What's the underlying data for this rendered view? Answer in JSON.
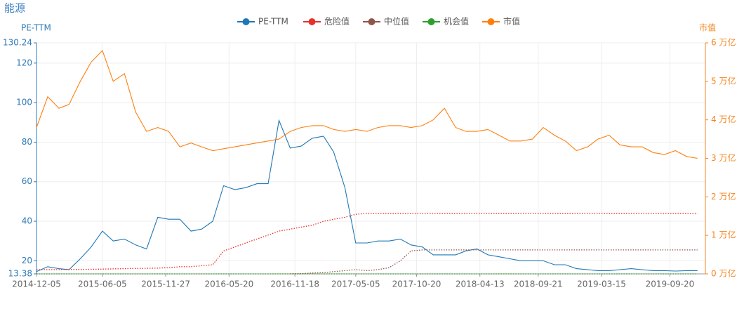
{
  "chart_data": {
    "type": "line",
    "title": "能源",
    "y_label": "PE-TTM",
    "y2_label": "市值",
    "grid": true,
    "legend": "top",
    "x": [
      "2014-12-05",
      "2015-01-05",
      "2015-02-05",
      "2015-03-05",
      "2015-04-05",
      "2015-05-05",
      "2015-06-05",
      "2015-07-05",
      "2015-08-05",
      "2015-09-05",
      "2015-10-05",
      "2015-11-05",
      "2015-12-05",
      "2016-01-05",
      "2016-02-05",
      "2016-03-05",
      "2016-04-05",
      "2016-05-05",
      "2016-06-05",
      "2016-07-05",
      "2016-08-05",
      "2016-09-05",
      "2016-10-05",
      "2016-11-05",
      "2016-12-05",
      "2017-01-05",
      "2017-02-05",
      "2017-03-05",
      "2017-04-05",
      "2017-05-05",
      "2017-06-05",
      "2017-07-05",
      "2017-08-05",
      "2017-09-05",
      "2017-10-05",
      "2017-11-05",
      "2017-12-05",
      "2018-01-05",
      "2018-02-05",
      "2018-03-05",
      "2018-04-05",
      "2018-05-05",
      "2018-06-05",
      "2018-07-05",
      "2018-08-05",
      "2018-09-05",
      "2018-10-05",
      "2018-11-05",
      "2018-12-05",
      "2019-01-05",
      "2019-02-05",
      "2019-03-05",
      "2019-04-05",
      "2019-05-05",
      "2019-06-05",
      "2019-07-05",
      "2019-08-05",
      "2019-09-05",
      "2019-10-05",
      "2019-11-05",
      "2019-12-05"
    ],
    "xlim": [
      "2014-12-05",
      "2019-12-27"
    ],
    "xticks": [
      "2014-12-05",
      "2015-06-05",
      "2015-11-27",
      "2016-05-20",
      "2016-11-18",
      "2017-05-05",
      "2017-10-20",
      "2018-04-13",
      "2018-09-21",
      "2019-03-15",
      "2019-09-20"
    ],
    "ylim": [
      13.38,
      130.24
    ],
    "yticks": [
      13.38,
      20,
      40,
      60,
      80,
      100,
      120,
      130.24
    ],
    "y2lim": [
      0,
      6
    ],
    "y2ticks": [
      {
        "value": 0,
        "label": "0 万亿"
      },
      {
        "value": 1,
        "label": "1 万亿"
      },
      {
        "value": 2,
        "label": "2 万亿"
      },
      {
        "value": 3,
        "label": "3 万亿"
      },
      {
        "value": 4,
        "label": "4 万亿"
      },
      {
        "value": 5,
        "label": "5 万亿"
      },
      {
        "value": 6,
        "label": "6 万亿"
      }
    ],
    "series": [
      {
        "name": "PE-TTM",
        "color": "#1f77b4",
        "line_style": "solid",
        "values": [
          14.5,
          17,
          16,
          15.5,
          21,
          27,
          35,
          30,
          31,
          28,
          26,
          42,
          41,
          41,
          35,
          36,
          40,
          58,
          56,
          57,
          59,
          59,
          91,
          77,
          78,
          82,
          83,
          75,
          57,
          29,
          29,
          30,
          30,
          31,
          28,
          27,
          23,
          23,
          23,
          25,
          26,
          23,
          22,
          21,
          20,
          20,
          20,
          18,
          18,
          16,
          15.5,
          15,
          15,
          15.5,
          16,
          15.5,
          15,
          15,
          14.8,
          15,
          15
        ]
      },
      {
        "name": "危险值",
        "color": "#e8302b",
        "line_style": "dotted",
        "values": [
          15.5,
          15.5,
          15.5,
          15.6,
          15.6,
          15.7,
          15.8,
          15.9,
          16,
          16.1,
          16.2,
          16.3,
          16.5,
          17,
          17,
          17.5,
          18,
          25,
          27,
          29,
          31,
          33,
          35,
          36,
          37,
          38,
          40,
          41,
          42,
          43.5,
          44,
          44,
          44,
          44,
          44,
          44,
          44,
          44,
          44,
          44,
          44,
          44,
          44,
          44,
          44,
          44,
          44,
          44,
          44,
          44,
          44,
          44,
          44,
          44,
          44,
          44,
          44,
          44,
          44,
          44,
          44
        ]
      },
      {
        "name": "中位值",
        "color": "#8c564b",
        "line_style": "dotted",
        "values": [
          null,
          null,
          null,
          null,
          null,
          null,
          null,
          null,
          null,
          null,
          null,
          null,
          null,
          null,
          null,
          null,
          null,
          null,
          null,
          null,
          null,
          null,
          null,
          13.4,
          13.5,
          13.8,
          14,
          14.5,
          15,
          15.5,
          15,
          15.5,
          16.5,
          20,
          25,
          25.5,
          25.5,
          25.5,
          25.5,
          25.5,
          25.5,
          25.5,
          25.5,
          25.5,
          25.5,
          25.5,
          25.5,
          25.5,
          25.5,
          25.5,
          25.5,
          25.5,
          25.5,
          25.5,
          25.5,
          25.5,
          25.5,
          25.5,
          25.5,
          25.5,
          25.5
        ]
      },
      {
        "name": "机会值",
        "color": "#2ca02c",
        "line_style": "dotted",
        "values": [
          13.38,
          13.38,
          13.38,
          13.38,
          13.38,
          13.38,
          13.38,
          13.38,
          13.38,
          13.38,
          13.38,
          13.38,
          13.38,
          13.38,
          13.38,
          13.38,
          13.38,
          13.38,
          13.38,
          13.38,
          13.38,
          13.38,
          13.38,
          13.38,
          13.38,
          13.38,
          13.38,
          13.38,
          13.38,
          13.38,
          13.38,
          13.38,
          13.38,
          13.38,
          13.38,
          13.38,
          13.38,
          13.38,
          13.38,
          13.38,
          13.38,
          13.38,
          13.38,
          13.38,
          13.38,
          13.38,
          13.38,
          13.38,
          13.38,
          13.38,
          13.38,
          13.38,
          13.38,
          13.38,
          13.38,
          13.38,
          13.38,
          13.38,
          13.38,
          13.38,
          13.38
        ]
      },
      {
        "name": "市值",
        "color": "#ff7f0e",
        "line_style": "solid",
        "axis": "y2",
        "values": [
          3.8,
          4.6,
          4.3,
          4.4,
          5.0,
          5.5,
          5.8,
          5.0,
          5.2,
          4.2,
          3.7,
          3.8,
          3.7,
          3.3,
          3.4,
          3.3,
          3.2,
          3.25,
          3.3,
          3.35,
          3.4,
          3.45,
          3.5,
          3.7,
          3.8,
          3.85,
          3.85,
          3.75,
          3.7,
          3.75,
          3.7,
          3.8,
          3.85,
          3.85,
          3.8,
          3.85,
          4.0,
          4.3,
          3.8,
          3.7,
          3.7,
          3.75,
          3.6,
          3.45,
          3.45,
          3.5,
          3.8,
          3.6,
          3.45,
          3.2,
          3.3,
          3.5,
          3.6,
          3.35,
          3.3,
          3.3,
          3.15,
          3.1,
          3.2,
          3.05,
          3.0
        ]
      }
    ]
  }
}
